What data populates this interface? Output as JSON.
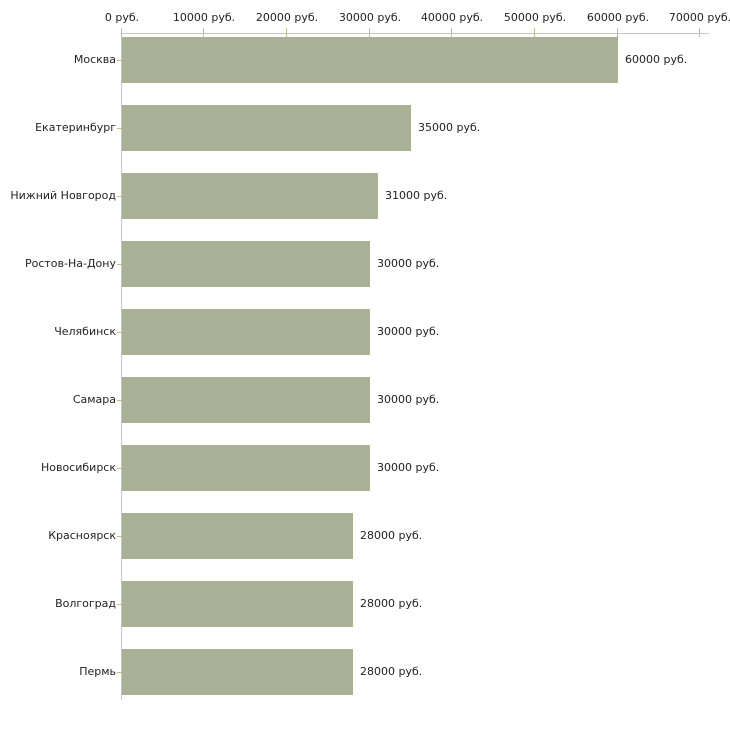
{
  "chart_data": {
    "type": "bar",
    "orientation": "horizontal",
    "title": "",
    "xlabel": "",
    "ylabel": "",
    "unit": "руб.",
    "categories": [
      "Москва",
      "Екатеринбург",
      "Нижний Новгород",
      "Ростов-На-Дону",
      "Челябинск",
      "Самара",
      "Новосибирск",
      "Красноярск",
      "Волгоград",
      "Пермь"
    ],
    "values": [
      60000,
      35000,
      31000,
      30000,
      30000,
      30000,
      30000,
      28000,
      28000,
      28000
    ],
    "value_labels": [
      "60000 руб.",
      "35000 руб.",
      "31000 руб.",
      "30000 руб.",
      "30000 руб.",
      "30000 руб.",
      "30000 руб.",
      "28000 руб.",
      "28000 руб.",
      "28000 руб."
    ],
    "x_ticks": [
      0,
      10000,
      20000,
      30000,
      40000,
      50000,
      60000,
      70000
    ],
    "x_tick_labels": [
      "0 руб.",
      "10000 руб.",
      "20000 руб.",
      "30000 руб.",
      "40000 руб.",
      "50000 руб.",
      "60000 руб.",
      "70000 руб."
    ],
    "xlim": [
      0,
      70000
    ],
    "grid": "off",
    "legend_position": "none",
    "colors": {
      "bar_fill": "#aab096",
      "axis_line": "#c6c6c6",
      "tick_mark": "#bdbd8a",
      "text": "#222222",
      "background": "#ffffff"
    }
  }
}
